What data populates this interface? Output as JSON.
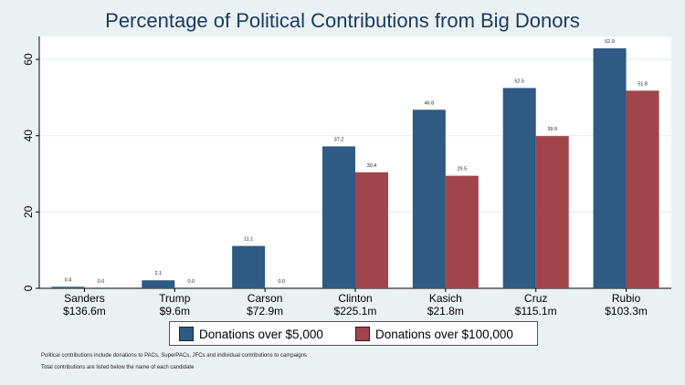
{
  "colors": {
    "background": "#eaf1f3",
    "plot_background": "#ffffff",
    "series_1": "#2e5a84",
    "series_2": "#a0454b",
    "title": "#1a3a5c"
  },
  "legend": {
    "items": [
      "Donations over $5,000",
      "Donations over $100,000"
    ],
    "placement": "bottom"
  },
  "notes": [
    "Political contributions include donations to PACs, SuperPACs, JFCs and individual contributions to campaigns",
    "Total contributions are listed below the name of each candidate"
  ],
  "chart_data": {
    "type": "bar",
    "title": "Percentage of Political Contributions from Big Donors",
    "xlabel": "",
    "ylabel": "",
    "categories": [
      "Sanders",
      "Trump",
      "Carson",
      "Clinton",
      "Kasich",
      "Cruz",
      "Rubio"
    ],
    "category_sublabels": [
      "$136.6m",
      "$9.6m",
      "$72.9m",
      "$225.1m",
      "$21.8m",
      "$115.1m",
      "$103.3m"
    ],
    "series": [
      {
        "name": "Donations over $5,000",
        "values": [
          0.4,
          2.1,
          11.1,
          37.2,
          46.8,
          52.5,
          62.9
        ],
        "labels": [
          "0.4",
          "2.1",
          "11.1",
          "37.2",
          "46.8",
          "52.5",
          "62.9"
        ]
      },
      {
        "name": "Donations over $100,000",
        "values": [
          0.0,
          0.0,
          0.0,
          30.4,
          29.5,
          39.9,
          51.8
        ],
        "labels": [
          "0.0",
          "0.0",
          "0.0",
          "30.4",
          "29.5",
          "39.9",
          "51.8"
        ]
      }
    ],
    "ylim": [
      0,
      66
    ],
    "yticks": [
      0,
      20,
      40,
      60
    ],
    "grid": true
  }
}
